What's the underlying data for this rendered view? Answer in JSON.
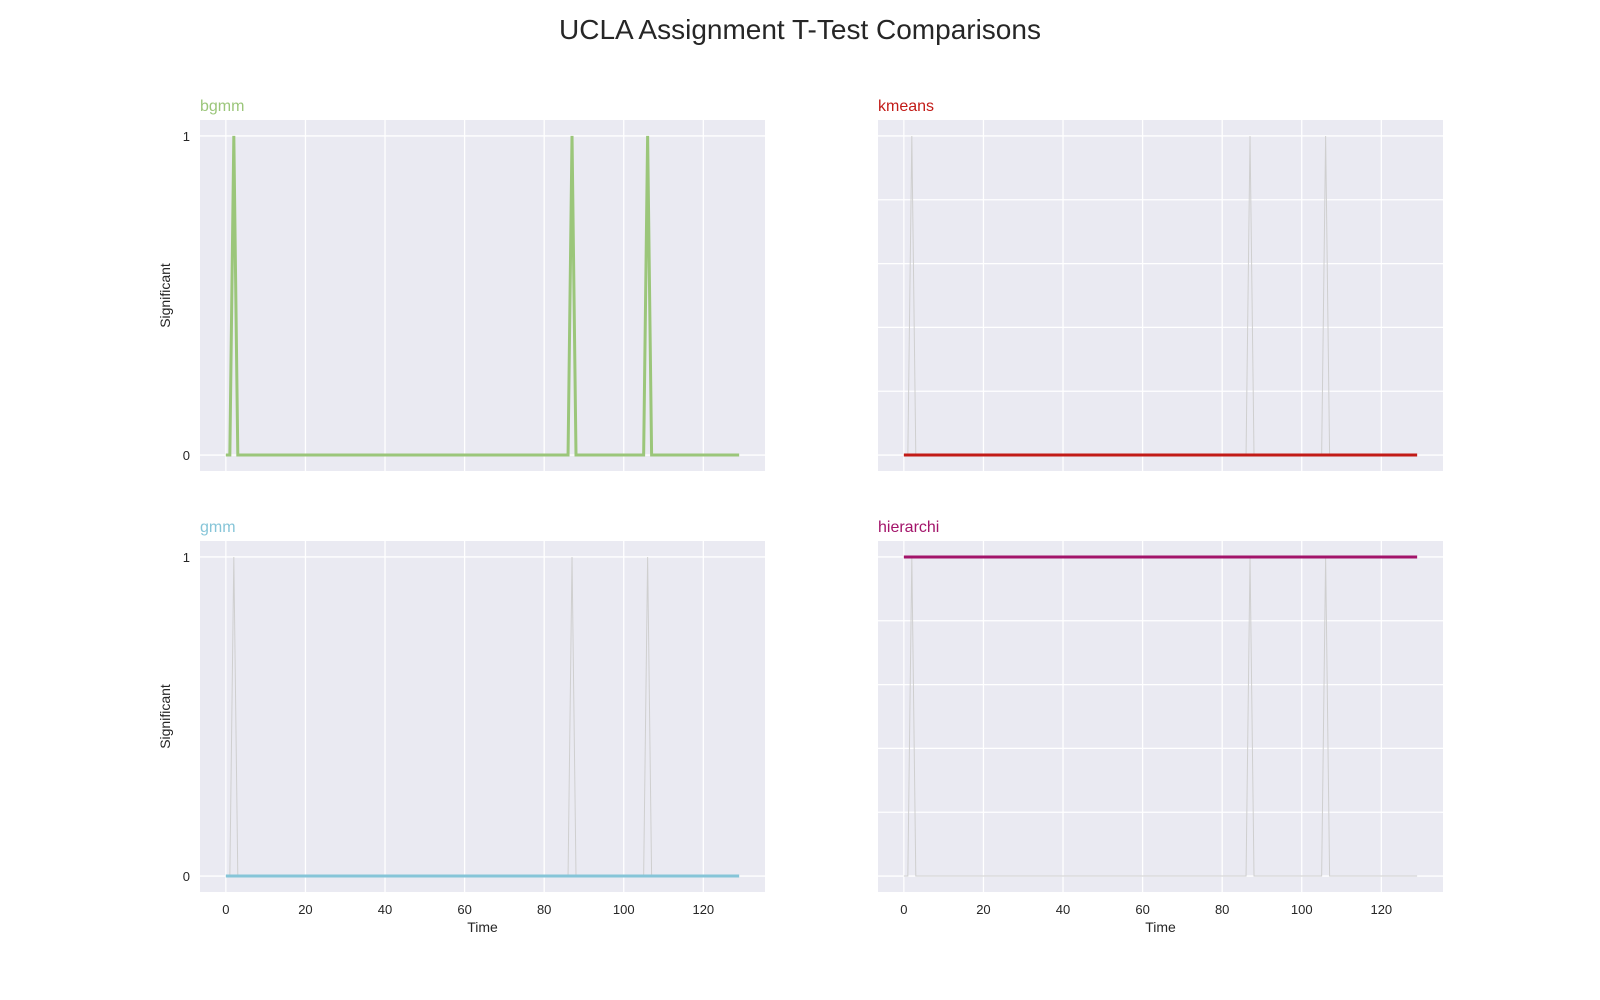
{
  "figure": {
    "title": "UCLA Assignment T-Test Comparisons"
  },
  "style": {
    "panel_background": "#EAEAF2",
    "grid_color": "#FFFFFF",
    "text_color": "#262626",
    "ghost_line_color": "#CFCFCF"
  },
  "chart_data": [
    {
      "type": "line",
      "title": "bgmm",
      "title_color": "#9BC67A",
      "line_color": "#9BC67A",
      "xlabel": "",
      "ylabel": "Significant",
      "xlim": [
        -6.5,
        135.5
      ],
      "ylim": [
        -0.05,
        1.05
      ],
      "xticks": [],
      "yticks": [
        0,
        1
      ],
      "ytick_labels": [
        "0",
        "1"
      ],
      "series": [
        {
          "points": [
            [
              0,
              0
            ],
            [
              1,
              0
            ],
            [
              2,
              1
            ],
            [
              3,
              0
            ],
            [
              86,
              0
            ],
            [
              87,
              1
            ],
            [
              88,
              0
            ],
            [
              105,
              0
            ],
            [
              106,
              1
            ],
            [
              107,
              0
            ],
            [
              129,
              0
            ]
          ]
        }
      ],
      "ghost_points": [
        [
          0,
          0
        ],
        [
          1,
          0
        ],
        [
          2,
          1
        ],
        [
          3,
          0
        ],
        [
          86,
          0
        ],
        [
          87,
          1
        ],
        [
          88,
          0
        ],
        [
          105,
          0
        ],
        [
          106,
          1
        ],
        [
          107,
          0
        ],
        [
          129,
          0
        ]
      ],
      "grid": true
    },
    {
      "type": "line",
      "title": "kmeans",
      "title_color": "#C21B17",
      "line_color": "#C21B17",
      "xlabel": "",
      "ylabel": "",
      "xlim": [
        -6.5,
        135.5
      ],
      "ylim": [
        -0.05,
        1.05
      ],
      "xticks": [],
      "yticks": [],
      "ytick_labels": [],
      "series": [
        {
          "points": [
            [
              0,
              0
            ],
            [
              129,
              0
            ]
          ]
        }
      ],
      "ghost_points": [
        [
          0,
          0
        ],
        [
          1,
          0
        ],
        [
          2,
          1
        ],
        [
          3,
          0
        ],
        [
          86,
          0
        ],
        [
          87,
          1
        ],
        [
          88,
          0
        ],
        [
          105,
          0
        ],
        [
          106,
          1
        ],
        [
          107,
          0
        ],
        [
          129,
          0
        ]
      ],
      "grid": true
    },
    {
      "type": "line",
      "title": "gmm",
      "title_color": "#86C5D8",
      "line_color": "#86C5D8",
      "xlabel": "Time",
      "ylabel": "Significant",
      "xlim": [
        -6.5,
        135.5
      ],
      "ylim": [
        -0.05,
        1.05
      ],
      "xticks": [
        0,
        20,
        40,
        60,
        80,
        100,
        120
      ],
      "xtick_labels": [
        "0",
        "20",
        "40",
        "60",
        "80",
        "100",
        "120"
      ],
      "yticks": [
        0,
        1
      ],
      "ytick_labels": [
        "0",
        "1"
      ],
      "series": [
        {
          "points": [
            [
              0,
              0
            ],
            [
              129,
              0
            ]
          ]
        }
      ],
      "ghost_points": [
        [
          0,
          0
        ],
        [
          1,
          0
        ],
        [
          2,
          1
        ],
        [
          3,
          0
        ],
        [
          86,
          0
        ],
        [
          87,
          1
        ],
        [
          88,
          0
        ],
        [
          105,
          0
        ],
        [
          106,
          1
        ],
        [
          107,
          0
        ],
        [
          129,
          0
        ]
      ],
      "grid": true
    },
    {
      "type": "line",
      "title": "hierarchi",
      "title_color": "#A3146A",
      "line_color": "#A3146A",
      "xlabel": "Time",
      "ylabel": "",
      "xlim": [
        -6.5,
        135.5
      ],
      "ylim": [
        -0.05,
        1.05
      ],
      "xticks": [
        0,
        20,
        40,
        60,
        80,
        100,
        120
      ],
      "xtick_labels": [
        "0",
        "20",
        "40",
        "60",
        "80",
        "100",
        "120"
      ],
      "yticks": [],
      "ytick_labels": [],
      "series": [
        {
          "points": [
            [
              0,
              1
            ],
            [
              129,
              1
            ]
          ]
        }
      ],
      "ghost_points": [
        [
          0,
          0
        ],
        [
          1,
          0
        ],
        [
          2,
          1
        ],
        [
          3,
          0
        ],
        [
          86,
          0
        ],
        [
          87,
          1
        ],
        [
          88,
          0
        ],
        [
          105,
          0
        ],
        [
          106,
          1
        ],
        [
          107,
          0
        ],
        [
          129,
          0
        ]
      ],
      "grid": true
    }
  ]
}
